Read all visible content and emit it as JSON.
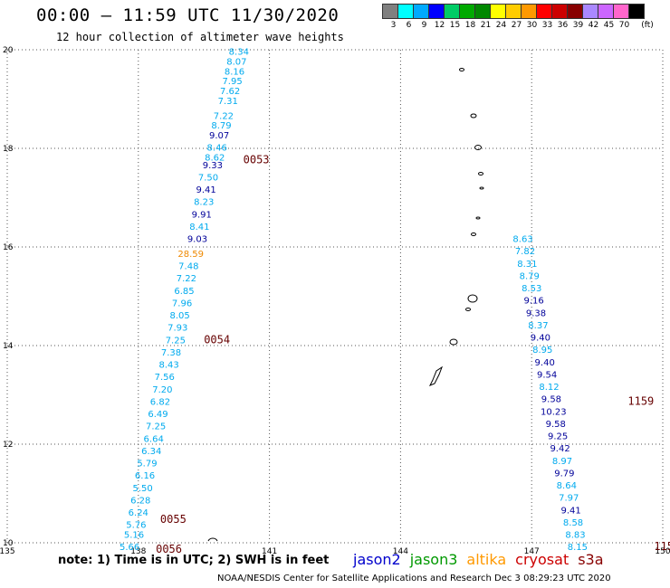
{
  "header": {
    "title": "00:00 – 11:59 UTC 11/30/2020",
    "subtitle": "12 hour collection of altimeter wave heights"
  },
  "legend": {
    "unit": "(ft)",
    "bins": [
      {
        "label": "3",
        "color": "#808080"
      },
      {
        "label": "6",
        "color": "#00ffff"
      },
      {
        "label": "9",
        "color": "#00aaff"
      },
      {
        "label": "12",
        "color": "#0000ff"
      },
      {
        "label": "15",
        "color": "#00cc66"
      },
      {
        "label": "18",
        "color": "#00aa00"
      },
      {
        "label": "21",
        "color": "#008800"
      },
      {
        "label": "24",
        "color": "#ffff00"
      },
      {
        "label": "27",
        "color": "#ffcc00"
      },
      {
        "label": "30",
        "color": "#ff9900"
      },
      {
        "label": "33",
        "color": "#ff0000"
      },
      {
        "label": "36",
        "color": "#cc0000"
      },
      {
        "label": "39",
        "color": "#880000"
      },
      {
        "label": "42",
        "color": "#aa88ff"
      },
      {
        "label": "45",
        "color": "#cc66ff"
      },
      {
        "label": "70",
        "color": "#ff66cc"
      },
      {
        "label": "",
        "color": "#000000"
      }
    ]
  },
  "footer": {
    "note": "note:  1) Time is in UTC;  2) SWH is in feet",
    "credit": "NOAA/NESDIS Center for Satellite Applications and Research    Dec  3 08:29:23 UTC 2020"
  },
  "satellites": [
    {
      "name": "jason2",
      "color": "#0000cc"
    },
    {
      "name": "jason3",
      "color": "#009900"
    },
    {
      "name": "altika",
      "color": "#ff9900"
    },
    {
      "name": "cryosat",
      "color": "#cc0000"
    },
    {
      "name": "s3a",
      "color": "#880000"
    }
  ],
  "axes": {
    "lon": [
      135,
      138,
      141,
      144,
      147,
      150
    ],
    "lat": [
      10,
      12,
      14,
      16,
      18,
      20
    ]
  },
  "colors": {
    "lightblue": "#00aaee",
    "darkblue": "#000099",
    "orange": "#ee8800",
    "timecolor": "#660000"
  },
  "tracks": [
    {
      "points": [
        {
          "lon": 140.3,
          "lat": 19.9,
          "v": "8.34",
          "c": "lightblue"
        },
        {
          "lon": 140.25,
          "lat": 19.7,
          "v": "8.07",
          "c": "lightblue"
        },
        {
          "lon": 140.2,
          "lat": 19.5,
          "v": "8.16",
          "c": "lightblue"
        },
        {
          "lon": 140.15,
          "lat": 19.3,
          "v": "7.95",
          "c": "lightblue"
        },
        {
          "lon": 140.1,
          "lat": 19.1,
          "v": "7.62",
          "c": "lightblue"
        },
        {
          "lon": 140.05,
          "lat": 18.9,
          "v": "7.31",
          "c": "lightblue"
        },
        {
          "lon": 139.95,
          "lat": 18.6,
          "v": "7.22",
          "c": "lightblue"
        },
        {
          "lon": 139.9,
          "lat": 18.4,
          "v": "8.79",
          "c": "lightblue"
        },
        {
          "lon": 139.85,
          "lat": 18.2,
          "v": "9.07",
          "c": "darkblue"
        },
        {
          "lon": 139.8,
          "lat": 17.95,
          "v": "8.46",
          "c": "lightblue"
        },
        {
          "lon": 139.75,
          "lat": 17.75,
          "v": "8.62",
          "c": "lightblue"
        },
        {
          "lon": 139.7,
          "lat": 17.6,
          "v": "9.33",
          "c": "darkblue"
        },
        {
          "lon": 139.6,
          "lat": 17.35,
          "v": "7.50",
          "c": "lightblue"
        },
        {
          "lon": 139.55,
          "lat": 17.1,
          "v": "9.41",
          "c": "darkblue"
        },
        {
          "lon": 139.5,
          "lat": 16.85,
          "v": "8.23",
          "c": "lightblue"
        },
        {
          "lon": 139.45,
          "lat": 16.6,
          "v": "9.91",
          "c": "darkblue"
        },
        {
          "lon": 139.4,
          "lat": 16.35,
          "v": "8.41",
          "c": "lightblue"
        },
        {
          "lon": 139.35,
          "lat": 16.1,
          "v": "9.03",
          "c": "darkblue"
        },
        {
          "lon": 139.2,
          "lat": 15.8,
          "v": "28.59",
          "c": "orange"
        },
        {
          "lon": 139.15,
          "lat": 15.55,
          "v": "7.48",
          "c": "lightblue"
        },
        {
          "lon": 139.1,
          "lat": 15.3,
          "v": "7.22",
          "c": "lightblue"
        },
        {
          "lon": 139.05,
          "lat": 15.05,
          "v": "6.85",
          "c": "lightblue"
        },
        {
          "lon": 139.0,
          "lat": 14.8,
          "v": "7.96",
          "c": "lightblue"
        },
        {
          "lon": 138.95,
          "lat": 14.55,
          "v": "8.05",
          "c": "lightblue"
        },
        {
          "lon": 138.9,
          "lat": 14.3,
          "v": "7.93",
          "c": "lightblue"
        },
        {
          "lon": 138.85,
          "lat": 14.05,
          "v": "7.25",
          "c": "lightblue"
        },
        {
          "lon": 138.75,
          "lat": 13.8,
          "v": "7.38",
          "c": "lightblue"
        },
        {
          "lon": 138.7,
          "lat": 13.55,
          "v": "8.43",
          "c": "lightblue"
        },
        {
          "lon": 138.6,
          "lat": 13.3,
          "v": "7.56",
          "c": "lightblue"
        },
        {
          "lon": 138.55,
          "lat": 13.05,
          "v": "7.20",
          "c": "lightblue"
        },
        {
          "lon": 138.5,
          "lat": 12.8,
          "v": "6.82",
          "c": "lightblue"
        },
        {
          "lon": 138.45,
          "lat": 12.55,
          "v": "6.49",
          "c": "lightblue"
        },
        {
          "lon": 138.4,
          "lat": 12.3,
          "v": "7.25",
          "c": "lightblue"
        },
        {
          "lon": 138.35,
          "lat": 12.05,
          "v": "6.64",
          "c": "lightblue"
        },
        {
          "lon": 138.3,
          "lat": 11.8,
          "v": "6.34",
          "c": "lightblue"
        },
        {
          "lon": 138.2,
          "lat": 11.55,
          "v": "5.79",
          "c": "lightblue"
        },
        {
          "lon": 138.15,
          "lat": 11.3,
          "v": "6.16",
          "c": "lightblue"
        },
        {
          "lon": 138.1,
          "lat": 11.05,
          "v": "5.50",
          "c": "lightblue"
        },
        {
          "lon": 138.05,
          "lat": 10.8,
          "v": "6.28",
          "c": "lightblue"
        },
        {
          "lon": 138.0,
          "lat": 10.55,
          "v": "6.24",
          "c": "lightblue"
        },
        {
          "lon": 137.95,
          "lat": 10.3,
          "v": "5.76",
          "c": "lightblue"
        },
        {
          "lon": 137.9,
          "lat": 10.1,
          "v": "5.16",
          "c": "lightblue"
        },
        {
          "lon": 137.8,
          "lat": 9.85,
          "v": "5.66",
          "c": "lightblue"
        }
      ]
    },
    {
      "points": [
        {
          "lon": 146.8,
          "lat": 16.1,
          "v": "8.63",
          "c": "lightblue"
        },
        {
          "lon": 146.85,
          "lat": 15.85,
          "v": "7.82",
          "c": "lightblue"
        },
        {
          "lon": 146.9,
          "lat": 15.6,
          "v": "8.31",
          "c": "lightblue"
        },
        {
          "lon": 146.95,
          "lat": 15.35,
          "v": "8.79",
          "c": "lightblue"
        },
        {
          "lon": 147.0,
          "lat": 15.1,
          "v": "8.53",
          "c": "lightblue"
        },
        {
          "lon": 147.05,
          "lat": 14.85,
          "v": "9.16",
          "c": "darkblue"
        },
        {
          "lon": 147.1,
          "lat": 14.6,
          "v": "9.38",
          "c": "darkblue"
        },
        {
          "lon": 147.15,
          "lat": 14.35,
          "v": "8.37",
          "c": "lightblue"
        },
        {
          "lon": 147.2,
          "lat": 14.1,
          "v": "9.40",
          "c": "darkblue"
        },
        {
          "lon": 147.25,
          "lat": 13.85,
          "v": "8.95",
          "c": "lightblue"
        },
        {
          "lon": 147.3,
          "lat": 13.6,
          "v": "9.40",
          "c": "darkblue"
        },
        {
          "lon": 147.35,
          "lat": 13.35,
          "v": "9.54",
          "c": "darkblue"
        },
        {
          "lon": 147.4,
          "lat": 13.1,
          "v": "8.12",
          "c": "lightblue"
        },
        {
          "lon": 147.45,
          "lat": 12.85,
          "v": "9.58",
          "c": "darkblue"
        },
        {
          "lon": 147.5,
          "lat": 12.6,
          "v": "10.23",
          "c": "darkblue"
        },
        {
          "lon": 147.55,
          "lat": 12.35,
          "v": "9.58",
          "c": "darkblue"
        },
        {
          "lon": 147.6,
          "lat": 12.1,
          "v": "9.25",
          "c": "darkblue"
        },
        {
          "lon": 147.65,
          "lat": 11.85,
          "v": "9.42",
          "c": "darkblue"
        },
        {
          "lon": 147.7,
          "lat": 11.6,
          "v": "8.97",
          "c": "lightblue"
        },
        {
          "lon": 147.75,
          "lat": 11.35,
          "v": "9.79",
          "c": "darkblue"
        },
        {
          "lon": 147.8,
          "lat": 11.1,
          "v": "8.64",
          "c": "lightblue"
        },
        {
          "lon": 147.85,
          "lat": 10.85,
          "v": "7.97",
          "c": "lightblue"
        },
        {
          "lon": 147.9,
          "lat": 10.6,
          "v": "9.41",
          "c": "darkblue"
        },
        {
          "lon": 147.95,
          "lat": 10.35,
          "v": "8.58",
          "c": "lightblue"
        },
        {
          "lon": 148.0,
          "lat": 10.1,
          "v": "8.83",
          "c": "lightblue"
        },
        {
          "lon": 148.05,
          "lat": 9.85,
          "v": "8.15",
          "c": "lightblue"
        }
      ]
    }
  ],
  "times": [
    {
      "lon": 140.4,
      "lat": 17.7,
      "t": "0053"
    },
    {
      "lon": 139.5,
      "lat": 14.05,
      "t": "0054"
    },
    {
      "lon": 138.5,
      "lat": 10.4,
      "t": "0055"
    },
    {
      "lon": 138.4,
      "lat": 9.8,
      "t": "0056"
    },
    {
      "lon": 149.2,
      "lat": 12.8,
      "t": "1159"
    },
    {
      "lon": 149.8,
      "lat": 9.85,
      "t": "115"
    }
  ]
}
